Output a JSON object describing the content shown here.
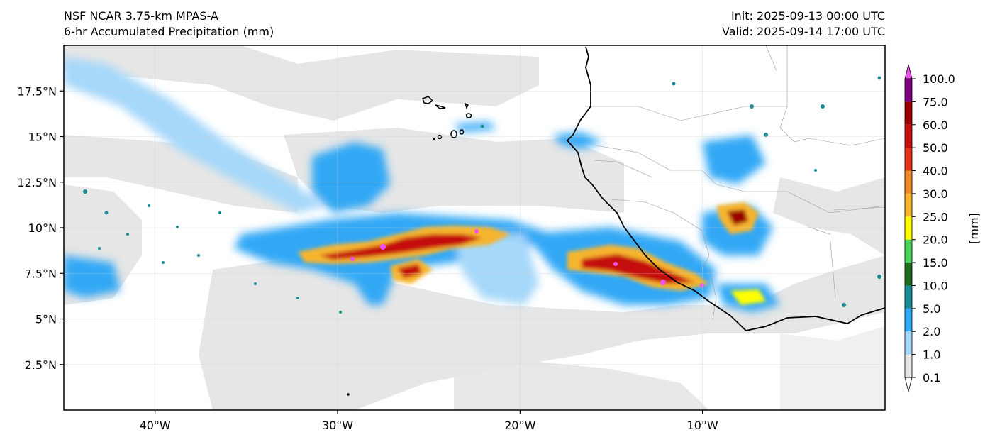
{
  "header": {
    "title_line1": "NSF NCAR 3.75-km MPAS-A",
    "title_line2": "6-hr Accumulated Precipitation (mm)",
    "init": "Init: 2025-09-13 00:00 UTC",
    "valid": "Valid: 2025-09-14 17:00 UTC"
  },
  "map": {
    "lon_range": [
      -45,
      0
    ],
    "lat_range": [
      0,
      20
    ],
    "lon_ticks": [
      {
        "value": -40,
        "label": "40°W"
      },
      {
        "value": -30,
        "label": "30°W"
      },
      {
        "value": -20,
        "label": "20°W"
      },
      {
        "value": -10,
        "label": "10°W"
      }
    ],
    "lat_ticks": [
      {
        "value": 2.5,
        "label": "2.5°N"
      },
      {
        "value": 5,
        "label": "5°N"
      },
      {
        "value": 7.5,
        "label": "7.5°N"
      },
      {
        "value": 10,
        "label": "10°N"
      },
      {
        "value": 12.5,
        "label": "12.5°N"
      },
      {
        "value": 15,
        "label": "15°N"
      },
      {
        "value": 17.5,
        "label": "17.5°N"
      }
    ],
    "grid": true
  },
  "colorbar": {
    "unit_label": "[mm]",
    "levels": [
      "0.1",
      "1.0",
      "2.0",
      "5.0",
      "10.0",
      "15.0",
      "20.0",
      "25.0",
      "30.0",
      "40.0",
      "50.0",
      "60.0",
      "75.0",
      "100.0"
    ],
    "colors": [
      "#e6e6e6",
      "#a6d8fa",
      "#33a8f5",
      "#1a8c96",
      "#1e6b1e",
      "#4ed45e",
      "#ffff00",
      "#f7b52e",
      "#f08c2e",
      "#e0331a",
      "#c40f0f",
      "#990000",
      "#7a0080",
      "#f050f0"
    ]
  }
}
